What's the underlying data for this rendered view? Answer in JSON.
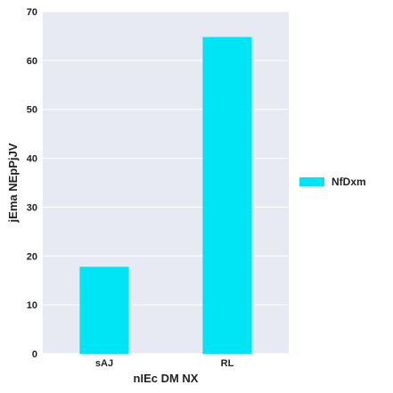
{
  "chart_data": {
    "type": "bar",
    "categories": [
      "sAJ",
      "RL"
    ],
    "series": [
      {
        "name": "NfDxm",
        "values": [
          17.8,
          64.8
        ],
        "color": "#00e5f5"
      }
    ],
    "xlabel": "nIEc DM NX",
    "ylabel": "jEma NEpPjJV",
    "ylim": [
      0,
      70
    ],
    "yticks": [
      0,
      10,
      20,
      30,
      40,
      50,
      60,
      70
    ],
    "grid": true,
    "plot_background": "#e8eaf3",
    "legend": "right"
  }
}
